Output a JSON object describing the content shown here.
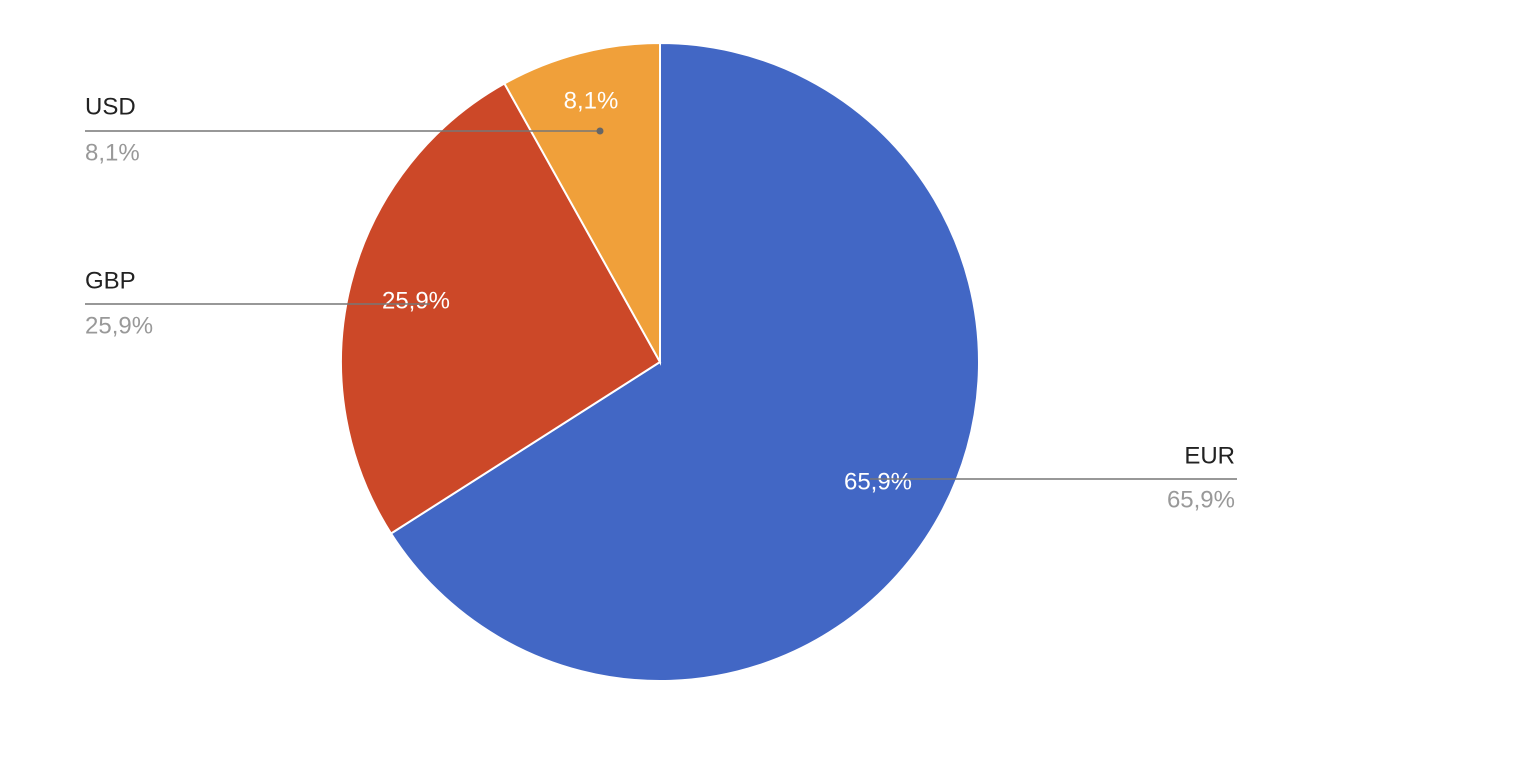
{
  "chart_data": {
    "type": "pie",
    "categories": [
      "EUR",
      "GBP",
      "USD"
    ],
    "values": [
      65.9,
      25.9,
      8.1
    ],
    "value_labels": [
      "65,9%",
      "25,9%",
      "8,1%"
    ],
    "colors": [
      "#4267c5",
      "#cc4828",
      "#f0a03a"
    ]
  }
}
